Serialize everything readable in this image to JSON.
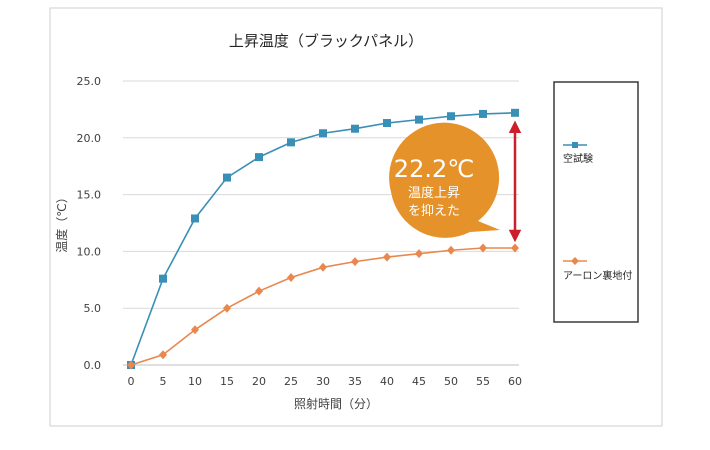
{
  "chart_data": {
    "type": "line",
    "title": "上昇温度（ブラックパネル）",
    "xlabel": "照射時間（分）",
    "ylabel": "温度（℃）",
    "x": [
      0,
      5,
      10,
      15,
      20,
      25,
      30,
      35,
      40,
      45,
      50,
      55,
      60
    ],
    "x_tick_labels": [
      "0",
      "5",
      "10",
      "15",
      "20",
      "25",
      "30",
      "35",
      "40",
      "45",
      "50",
      "55",
      "60"
    ],
    "y_ticks": [
      0,
      5,
      10,
      15,
      20,
      25
    ],
    "y_tick_labels": [
      "0.0",
      "5.0",
      "10.0",
      "15.0",
      "20.0",
      "25.0"
    ],
    "ylim": [
      0,
      25
    ],
    "xlim": [
      0,
      60
    ],
    "grid": "horizontal",
    "legend_position": "right",
    "series": [
      {
        "name": "空試験",
        "color": "#3a8fb7",
        "marker": "square",
        "values": [
          0.0,
          7.6,
          12.9,
          16.5,
          18.3,
          19.6,
          20.4,
          20.8,
          21.3,
          21.6,
          21.9,
          22.1,
          22.2
        ]
      },
      {
        "name": "アーロン裏地付",
        "color": "#e8884f",
        "marker": "diamond",
        "values": [
          0.0,
          0.9,
          3.1,
          5.0,
          6.5,
          7.7,
          8.6,
          9.1,
          9.5,
          9.8,
          10.1,
          10.3,
          10.3
        ]
      }
    ],
    "annotation": {
      "value_text": "22.2℃",
      "line1": "温度上昇",
      "line2": "を抑えた",
      "bubble_color": "#e5922a",
      "arrow_color": "#cc1f2b",
      "arrow_from": 22.2,
      "arrow_to": 10.3,
      "arrow_x": 60
    }
  }
}
